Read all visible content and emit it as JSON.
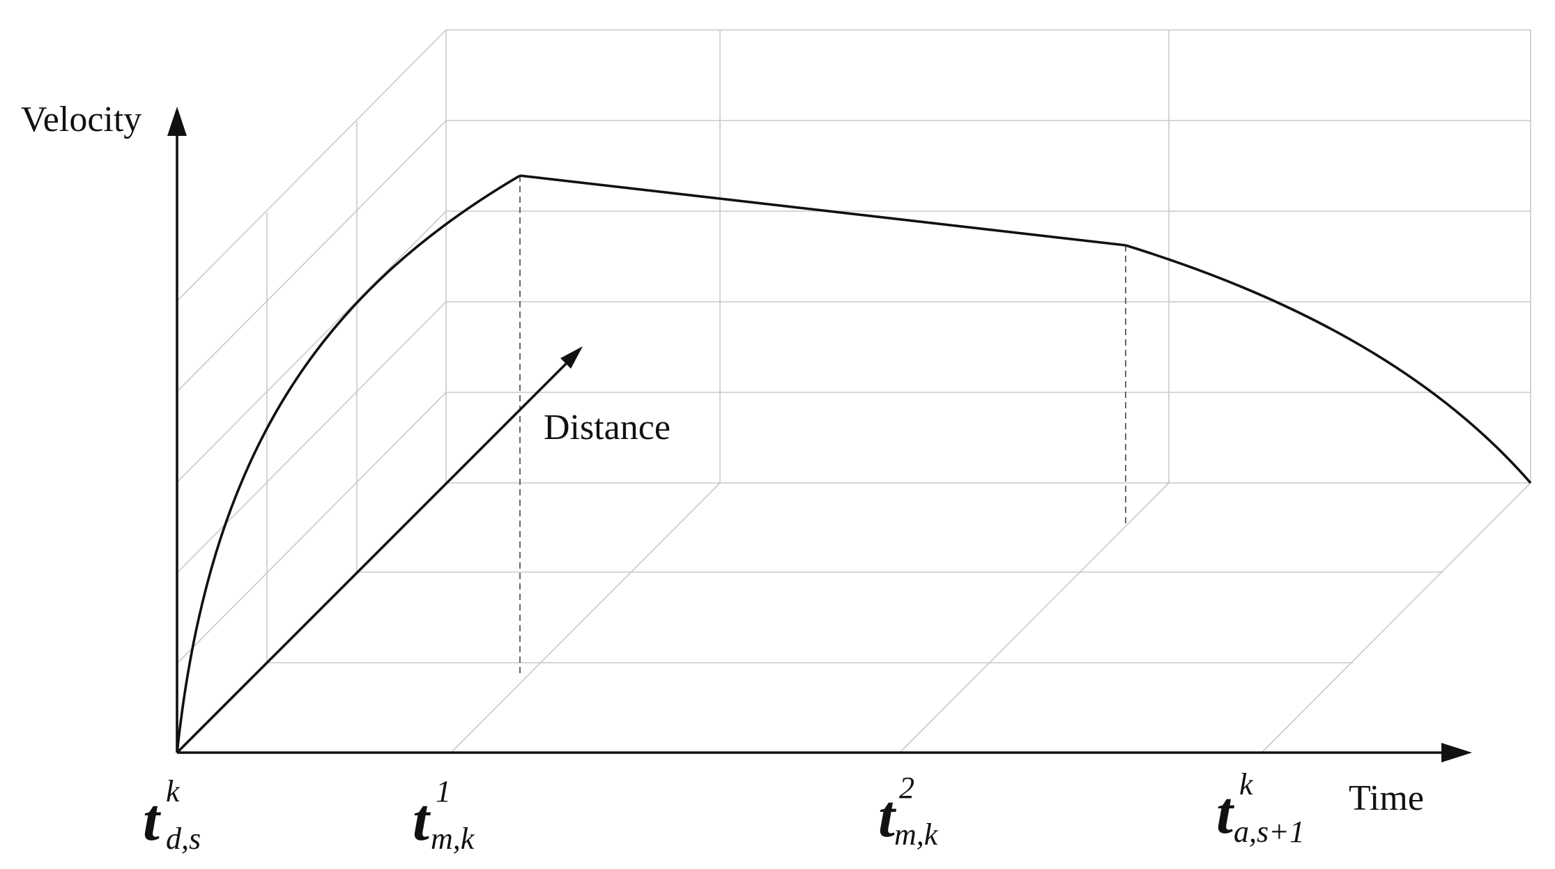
{
  "axes": {
    "velocity_label": "Velocity",
    "distance_label": "Distance",
    "time_label": "Time"
  },
  "time_markers": [
    {
      "main": "t",
      "sup": "k",
      "sub": "d,s"
    },
    {
      "main": "t",
      "sup": "1",
      "sub": "m,k"
    },
    {
      "main": "t",
      "sup": "2",
      "sub": "m,k"
    },
    {
      "main": "t",
      "sup": "k",
      "sub": "a,s+1"
    }
  ]
}
